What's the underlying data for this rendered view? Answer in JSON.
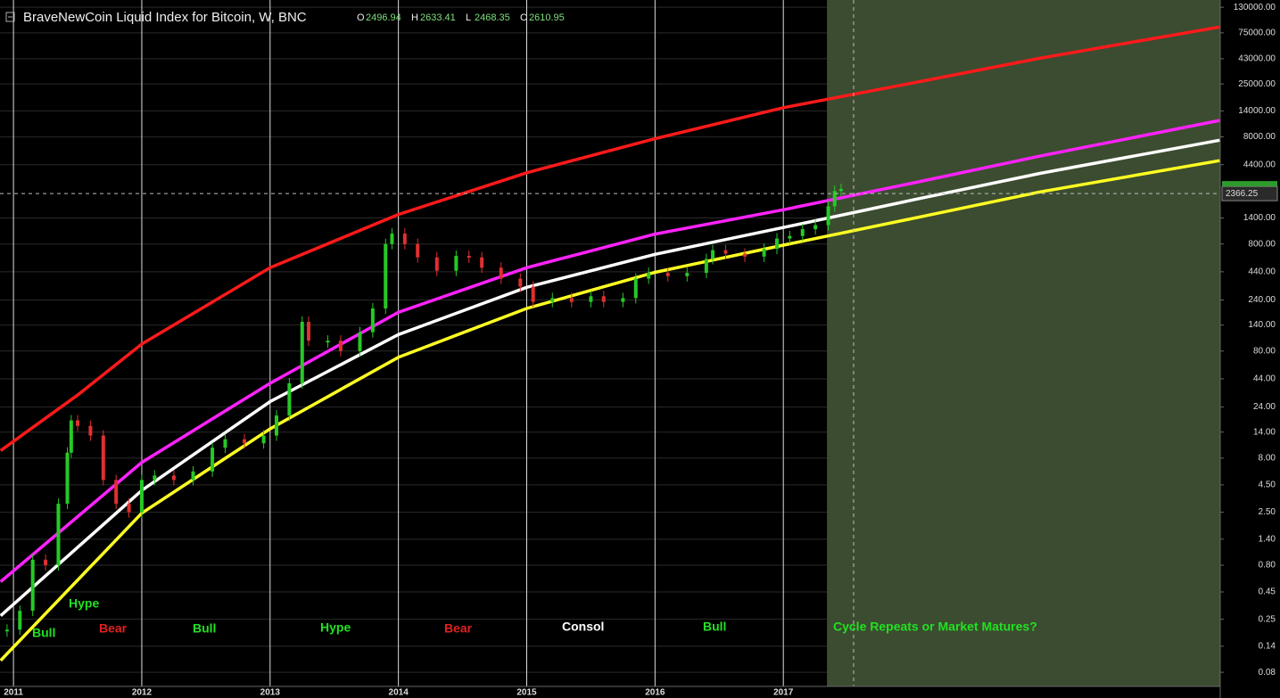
{
  "chart_data": {
    "type": "candlestick",
    "title": "BraveNewCoin Liquid Index for Bitcoin, W, BNC",
    "ohlc": [
      {
        "label": "O",
        "value": 2496.94
      },
      {
        "label": "H",
        "value": 2633.41
      },
      {
        "label": "L",
        "value": 2468.35
      },
      {
        "label": "C",
        "value": 2610.95
      }
    ],
    "log_scale": true,
    "ylim": [
      0.059,
      152000
    ],
    "xlim": [
      2010.895,
      2020.405
    ],
    "xticks": [
      2011,
      2012,
      2013,
      2014,
      2015,
      2016,
      2017
    ],
    "yticks": [
      {
        "value": 130000,
        "label": "130000.00"
      },
      {
        "value": 75000,
        "label": "75000.00"
      },
      {
        "value": 43000,
        "label": "43000.00"
      },
      {
        "value": 25000,
        "label": "25000.00"
      },
      {
        "value": 14000,
        "label": "14000.00"
      },
      {
        "value": 8000,
        "label": "8000.00"
      },
      {
        "value": 4400,
        "label": "4400.00"
      },
      {
        "value": 1400,
        "label": "1400.00"
      },
      {
        "value": 800,
        "label": "800.00"
      },
      {
        "value": 440,
        "label": "440.00"
      },
      {
        "value": 240,
        "label": "240.00"
      },
      {
        "value": 140,
        "label": "140.00"
      },
      {
        "value": 80,
        "label": "80.00"
      },
      {
        "value": 44,
        "label": "44.00"
      },
      {
        "value": 24,
        "label": "24.00"
      },
      {
        "value": 14,
        "label": "14.00"
      },
      {
        "value": 8,
        "label": "8.00"
      },
      {
        "value": 4.5,
        "label": "4.50"
      },
      {
        "value": 2.5,
        "label": "2.50"
      },
      {
        "value": 1.4,
        "label": "1.40"
      },
      {
        "value": 0.8,
        "label": "0.80"
      },
      {
        "value": 0.45,
        "label": "0.45"
      },
      {
        "value": 0.25,
        "label": "0.25"
      },
      {
        "value": 0.14,
        "label": "0.14"
      },
      {
        "value": 0.08,
        "label": "0.08"
      }
    ],
    "crosshair_value": 2366.25,
    "highlight_start": 2017.34,
    "up_color": "#26c926",
    "down_color": "#e03030",
    "price": {
      "x": [
        2010.95,
        2011.05,
        2011.15,
        2011.25,
        2011.35,
        2011.42,
        2011.45,
        2011.5,
        2011.6,
        2011.7,
        2011.8,
        2011.9,
        2012.0,
        2012.1,
        2012.25,
        2012.4,
        2012.55,
        2012.65,
        2012.8,
        2012.95,
        2013.05,
        2013.15,
        2013.25,
        2013.3,
        2013.45,
        2013.55,
        2013.7,
        2013.8,
        2013.9,
        2013.95,
        2014.05,
        2014.15,
        2014.3,
        2014.45,
        2014.55,
        2014.65,
        2014.8,
        2014.95,
        2015.05,
        2015.2,
        2015.35,
        2015.5,
        2015.6,
        2015.75,
        2015.85,
        2015.95,
        2016.1,
        2016.25,
        2016.4,
        2016.45,
        2016.55,
        2016.7,
        2016.85,
        2016.95,
        2017.05,
        2017.15,
        2017.25,
        2017.35,
        2017.4,
        2017.45
      ],
      "values": [
        0.2,
        0.3,
        0.9,
        0.8,
        3,
        9,
        18,
        16,
        13,
        5,
        3,
        2.5,
        5,
        5.5,
        5,
        6,
        10,
        12,
        11,
        13,
        20,
        40,
        150,
        100,
        100,
        80,
        120,
        200,
        800,
        1000,
        800,
        600,
        450,
        620,
        600,
        480,
        380,
        320,
        230,
        250,
        230,
        260,
        230,
        250,
        380,
        430,
        400,
        430,
        580,
        700,
        650,
        610,
        720,
        900,
        950,
        1100,
        1200,
        1800,
        2500,
        2610.95
      ]
    },
    "curves": [
      {
        "color": "#ff1a1a",
        "x": [
          2010.9,
          2011.5,
          2012,
          2013,
          2014,
          2015,
          2016,
          2017,
          2018,
          2019,
          2020.4
        ],
        "values": [
          9.4,
          31,
          93,
          480,
          1510,
          3700,
          7700,
          15000,
          25400,
          43500,
          85000
        ]
      },
      {
        "color": "#ff22ff",
        "x": [
          2010.9,
          2012,
          2013,
          2014,
          2015,
          2016,
          2017,
          2018,
          2019,
          2020.4
        ],
        "values": [
          0.56,
          7.3,
          40,
          184,
          480,
          990,
          1670,
          2950,
          5300,
          11400
        ]
      },
      {
        "color": "#ffffff",
        "x": [
          2010.9,
          2012,
          2013,
          2014,
          2015,
          2016,
          2017,
          2018,
          2019,
          2020.4
        ],
        "values": [
          0.27,
          4.0,
          27,
          114,
          315,
          640,
          1140,
          2050,
          3650,
          7450
        ]
      },
      {
        "color": "#ffff22",
        "x": [
          2010.9,
          2012,
          2013,
          2014,
          2015,
          2016,
          2017,
          2018,
          2019,
          2020.4
        ],
        "values": [
          0.103,
          2.45,
          15,
          70,
          200,
          435,
          780,
          1380,
          2450,
          4800
        ]
      }
    ],
    "annotations": [
      "Bull",
      "Hype",
      "Bear",
      "Bull",
      "Hype",
      "Bear",
      "Consol",
      "Bull",
      "Cycle Repeats or Market Matures?"
    ]
  }
}
